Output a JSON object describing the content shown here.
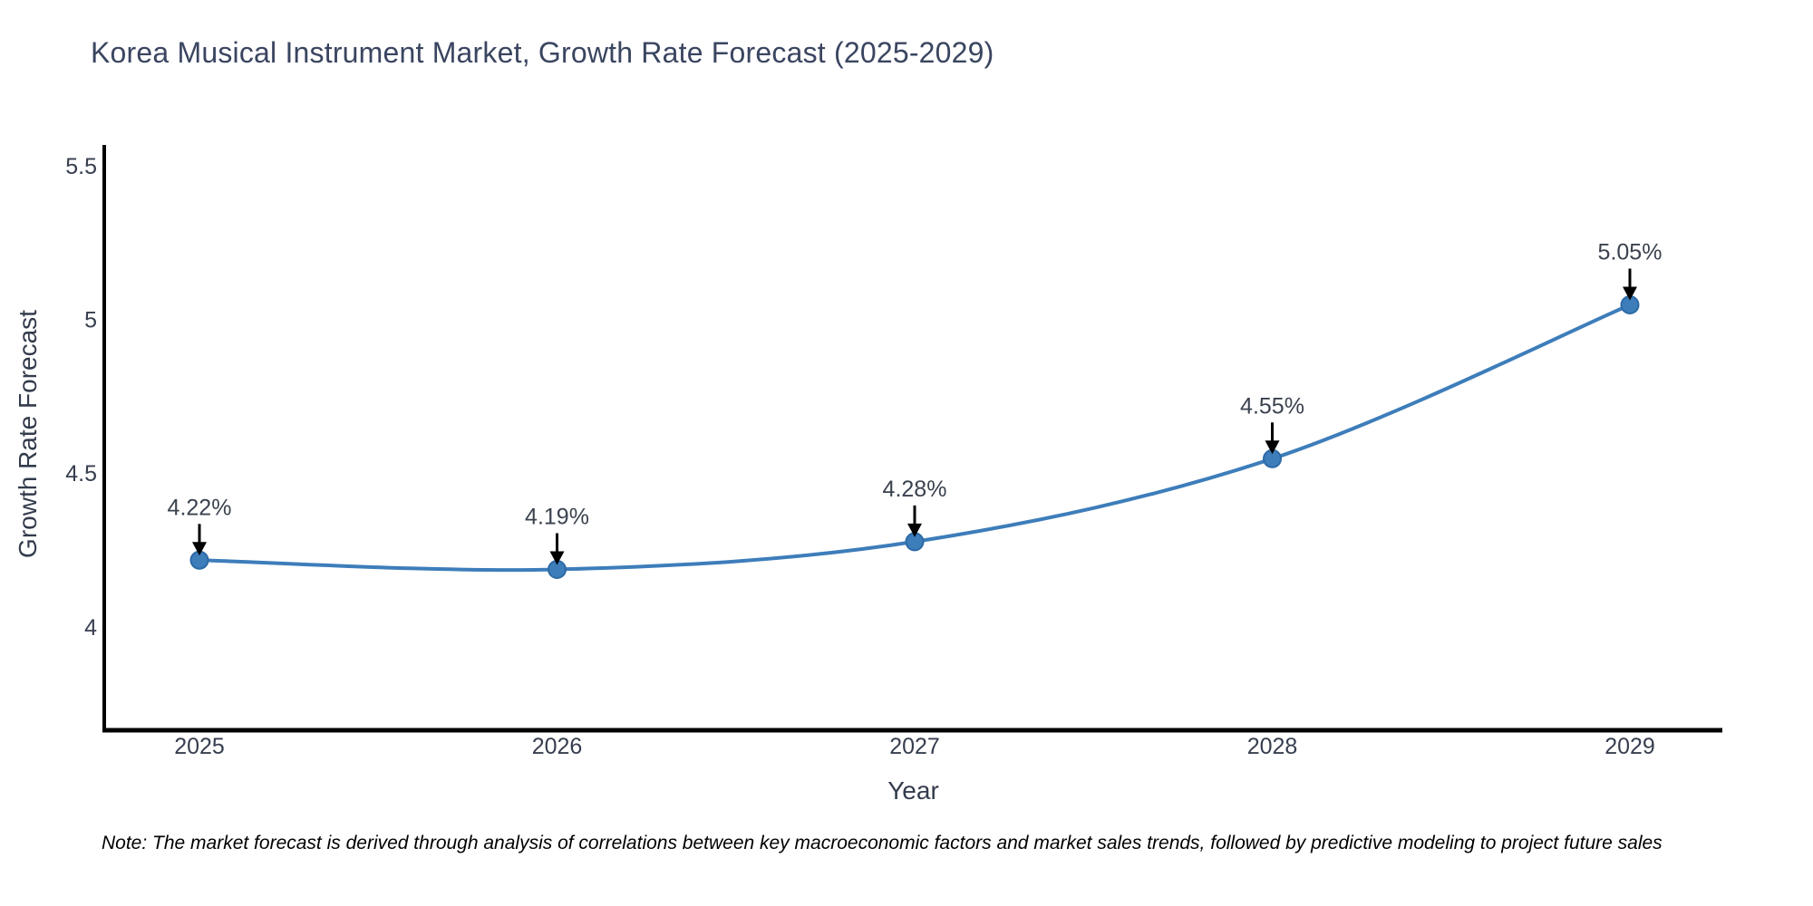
{
  "note": "Note: The market forecast is derived through analysis of correlations between key macroeconomic factors and market sales trends, followed by predictive modeling to project future sales",
  "chart_data": {
    "type": "line",
    "title": "Korea Musical Instrument Market, Growth Rate Forecast (2025-2029)",
    "xlabel": "Year",
    "ylabel": "Growth Rate Forecast",
    "categories": [
      "2025",
      "2026",
      "2027",
      "2028",
      "2029"
    ],
    "series": [
      {
        "name": "Growth Rate Forecast",
        "values": [
          4.22,
          4.19,
          4.28,
          4.55,
          5.05
        ],
        "point_labels": [
          "4.22%",
          "4.19%",
          "4.28%",
          "4.55%",
          "5.05%"
        ]
      }
    ],
    "line_shape": "spline",
    "markers": true,
    "grid": false,
    "legend_position": "none",
    "yticks": [
      4,
      4.5,
      5,
      5.5
    ],
    "ytick_labels": [
      "4",
      "4.5",
      "5",
      "5.5"
    ],
    "ylim": [
      3.67,
      5.57
    ],
    "colors": {
      "line": "#3d7dba",
      "marker_fill": "#3d7dba",
      "marker_edge": "#2c6aa5",
      "axis_line": "#000000",
      "tick_text": "#363e4f",
      "annotation_text": "#3a424e",
      "annotation_arrow": "#000000",
      "title_text": "#3a4560",
      "background": "#ffffff"
    }
  }
}
